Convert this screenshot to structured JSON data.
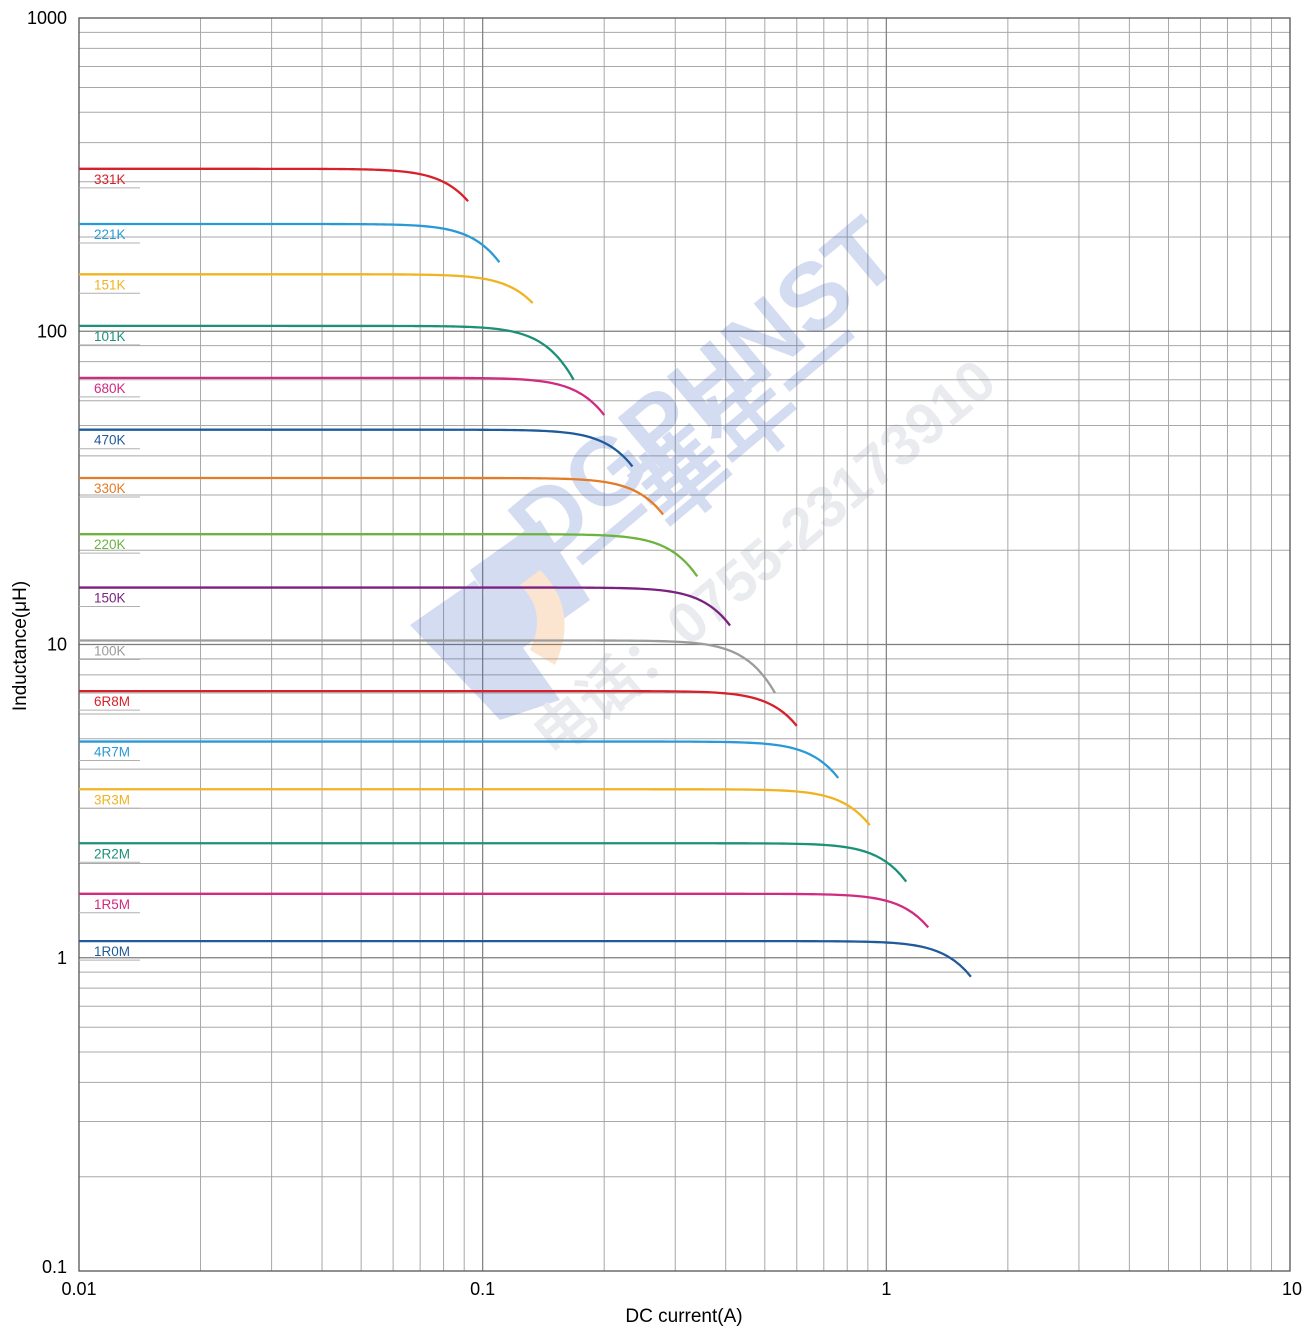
{
  "chart_data": {
    "type": "line",
    "xlabel": "DC current(A)",
    "ylabel": "Inductance(μH)",
    "x_scale": "log",
    "y_scale": "log",
    "xlim": [
      0.01,
      10
    ],
    "ylim": [
      0.1,
      1000
    ],
    "grid": true,
    "x_ticks": [
      "0.01",
      "0.1",
      "1",
      "10"
    ],
    "y_ticks": [
      "0.1",
      "1",
      "10",
      "100",
      "1000"
    ],
    "series": [
      {
        "name": "331K",
        "color": "#d7212a",
        "L0": 330,
        "x_end": 0.092,
        "L_end": 260
      },
      {
        "name": "221K",
        "color": "#2a9ad6",
        "L0": 220,
        "x_end": 0.11,
        "L_end": 166
      },
      {
        "name": "151K",
        "color": "#f0b323",
        "L0": 152,
        "x_end": 0.133,
        "L_end": 123
      },
      {
        "name": "101K",
        "color": "#1d9178",
        "L0": 104,
        "x_end": 0.168,
        "L_end": 70
      },
      {
        "name": "680K",
        "color": "#d12b80",
        "L0": 71,
        "x_end": 0.2,
        "L_end": 54
      },
      {
        "name": "470K",
        "color": "#1f5b9b",
        "L0": 48.5,
        "x_end": 0.235,
        "L_end": 37
      },
      {
        "name": "330K",
        "color": "#e37b27",
        "L0": 34,
        "x_end": 0.28,
        "L_end": 26
      },
      {
        "name": "220K",
        "color": "#6cb33f",
        "L0": 22.5,
        "x_end": 0.34,
        "L_end": 16.5
      },
      {
        "name": "150K",
        "color": "#7a2182",
        "L0": 15.2,
        "x_end": 0.41,
        "L_end": 11.5
      },
      {
        "name": "100K",
        "color": "#9c9c9c",
        "L0": 10.3,
        "x_end": 0.53,
        "L_end": 7.0
      },
      {
        "name": "6R8M",
        "color": "#d7212a",
        "L0": 7.1,
        "x_end": 0.6,
        "L_end": 5.5
      },
      {
        "name": "4R7M",
        "color": "#2a9ad6",
        "L0": 4.9,
        "x_end": 0.76,
        "L_end": 3.75
      },
      {
        "name": "3R3M",
        "color": "#f0b323",
        "L0": 3.45,
        "x_end": 0.91,
        "L_end": 2.65
      },
      {
        "name": "2R2M",
        "color": "#1d9178",
        "L0": 2.32,
        "x_end": 1.12,
        "L_end": 1.75
      },
      {
        "name": "1R5M",
        "color": "#d12b80",
        "L0": 1.6,
        "x_end": 1.27,
        "L_end": 1.25
      },
      {
        "name": "1R0M",
        "color": "#1f5b9b",
        "L0": 1.13,
        "x_end": 1.62,
        "L_end": 0.87
      }
    ]
  },
  "watermark": {
    "brand": "DGPHNST",
    "chinese": "一華年一",
    "phone": "电话：0755-23173910",
    "colors": {
      "blue": "#3b5fc4",
      "orange": "#f08a2a"
    }
  }
}
